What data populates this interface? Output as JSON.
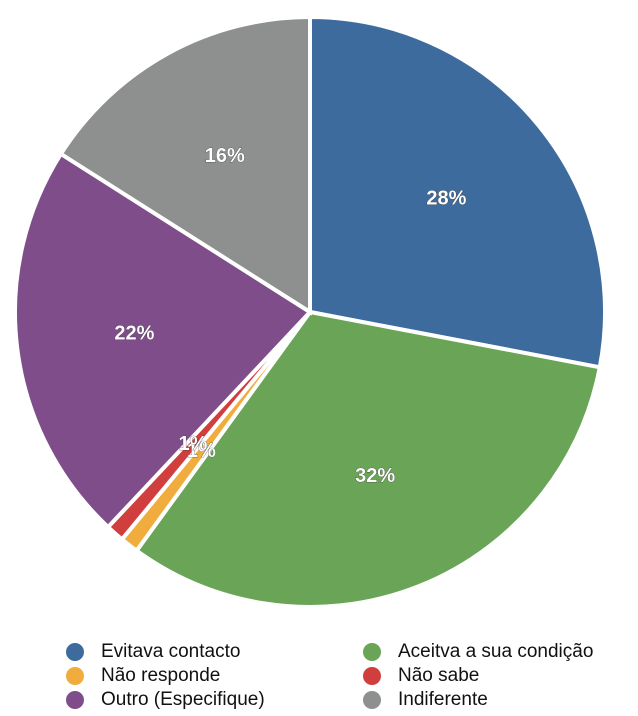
{
  "chart_data": {
    "type": "pie",
    "categories": [
      "Evitava contacto",
      "Aceitva a sua condição",
      "Não responde",
      "Não sabe",
      "Outro (Especifique)",
      "Indiferente"
    ],
    "values": [
      28,
      32,
      1,
      1,
      22,
      16
    ],
    "value_labels": [
      "28%",
      "32%",
      "1%",
      "1%",
      "22%",
      "16%"
    ],
    "colors": [
      "#3e6b9e",
      "#6aa457",
      "#f0ad3e",
      "#d03e3d",
      "#7f4e8a",
      "#8e8f8f"
    ],
    "slice_order": [
      0,
      1,
      2,
      3,
      4,
      5
    ]
  }
}
